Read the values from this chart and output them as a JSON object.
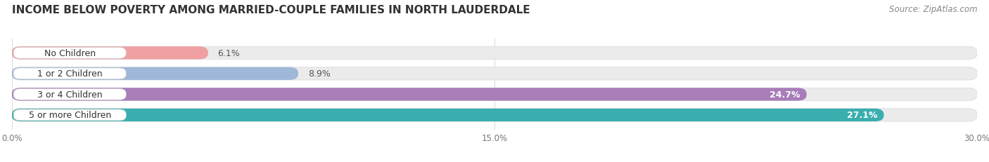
{
  "title": "INCOME BELOW POVERTY AMONG MARRIED-COUPLE FAMILIES IN NORTH LAUDERDALE",
  "source": "Source: ZipAtlas.com",
  "categories": [
    "No Children",
    "1 or 2 Children",
    "3 or 4 Children",
    "5 or more Children"
  ],
  "values": [
    6.1,
    8.9,
    24.7,
    27.1
  ],
  "bar_colors": [
    "#f0a0a0",
    "#a0b8d8",
    "#a87db8",
    "#3aaeae"
  ],
  "label_colors": [
    "#333333",
    "#333333",
    "#ffffff",
    "#ffffff"
  ],
  "xlim": [
    0,
    30.0
  ],
  "xticks": [
    0.0,
    15.0,
    30.0
  ],
  "xtick_labels": [
    "0.0%",
    "15.0%",
    "30.0%"
  ],
  "bar_height": 0.62,
  "background_color": "#ffffff",
  "bar_bg_color": "#ebebeb",
  "title_fontsize": 11,
  "source_fontsize": 8.5,
  "label_fontsize": 9,
  "category_fontsize": 9,
  "value_label_outside_color": "#555555",
  "value_label_inside_color": "#ffffff"
}
